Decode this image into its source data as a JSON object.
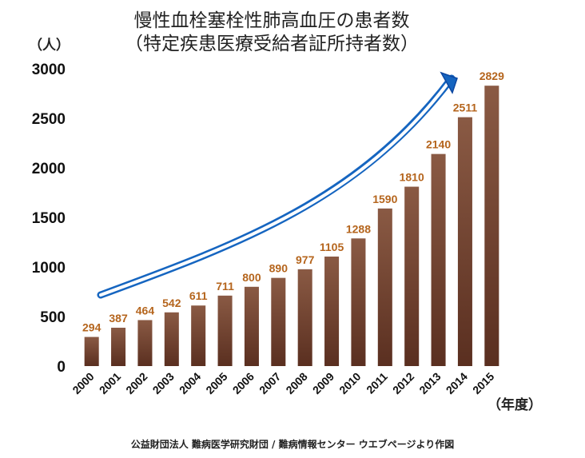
{
  "chart_data": {
    "type": "bar",
    "title": "慢性血栓塞栓性肺高血圧の患者数",
    "subtitle": "（特定疾患医療受給者証所持者数）",
    "y_unit": "（人）",
    "x_unit": "（年度）",
    "categories": [
      "2000",
      "2001",
      "2002",
      "2003",
      "2004",
      "2005",
      "2006",
      "2007",
      "2008",
      "2009",
      "2010",
      "2011",
      "2012",
      "2013",
      "2014",
      "2015"
    ],
    "values": [
      294,
      387,
      464,
      542,
      611,
      711,
      800,
      890,
      977,
      1105,
      1288,
      1590,
      1810,
      2140,
      2511,
      2829
    ],
    "ylim": [
      0,
      3000
    ],
    "yticks": [
      0,
      500,
      1000,
      1500,
      2000,
      2500,
      3000
    ],
    "grid": false,
    "annotation": "rising trend arrow",
    "source": "公益財団法人 難病医学研究財団 / 難病情報センター ウエブページより作図",
    "colors": {
      "bar_top": "#8a5a44",
      "bar_bottom": "#5a2f20",
      "data_label": "#b5651d",
      "arrow": "#1565c0"
    }
  }
}
